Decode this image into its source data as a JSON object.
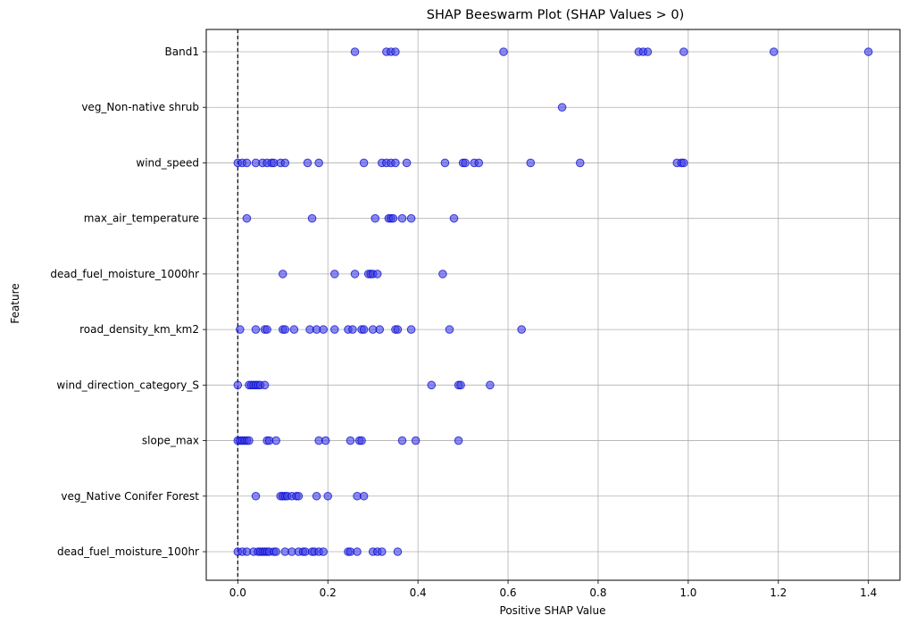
{
  "chart_data": {
    "type": "scatter",
    "title": "SHAP Beeswarm Plot (SHAP Values > 0)",
    "xlabel": "Positive SHAP Value",
    "ylabel": "Feature",
    "xlim": [
      -0.07,
      1.47
    ],
    "xticks": [
      0.0,
      0.2,
      0.4,
      0.6,
      0.8,
      1.0,
      1.2,
      1.4
    ],
    "xtick_labels": [
      "0.0",
      "0.2",
      "0.4",
      "0.6",
      "0.8",
      "1.0",
      "1.2",
      "1.4"
    ],
    "grid": true,
    "reference_line": {
      "x": 0,
      "style": "dashed",
      "color": "#000000"
    },
    "point_color": "#4040e6",
    "point_edge_color": "#0000cc",
    "features": [
      {
        "name": "Band1",
        "values": [
          0.26,
          0.33,
          0.34,
          0.35,
          0.59,
          0.89,
          0.9,
          0.91,
          0.99,
          1.19,
          1.4
        ]
      },
      {
        "name": "veg_Non-native shrub ",
        "values": [
          0.72
        ]
      },
      {
        "name": "wind_speed",
        "values": [
          0.0,
          0.01,
          0.02,
          0.04,
          0.055,
          0.065,
          0.075,
          0.08,
          0.095,
          0.105,
          0.155,
          0.18,
          0.28,
          0.32,
          0.33,
          0.34,
          0.35,
          0.375,
          0.46,
          0.5,
          0.505,
          0.525,
          0.535,
          0.65,
          0.76,
          0.975,
          0.985,
          0.99
        ]
      },
      {
        "name": "max_air_temperature",
        "values": [
          0.02,
          0.165,
          0.305,
          0.335,
          0.34,
          0.345,
          0.365,
          0.385,
          0.48
        ]
      },
      {
        "name": "dead_fuel_moisture_1000hr",
        "values": [
          0.1,
          0.215,
          0.26,
          0.29,
          0.295,
          0.3,
          0.31,
          0.455
        ]
      },
      {
        "name": "road_density_km_km2",
        "values": [
          0.005,
          0.04,
          0.06,
          0.065,
          0.1,
          0.105,
          0.125,
          0.16,
          0.175,
          0.19,
          0.215,
          0.245,
          0.255,
          0.275,
          0.28,
          0.3,
          0.315,
          0.35,
          0.355,
          0.385,
          0.47,
          0.63
        ]
      },
      {
        "name": "wind_direction_category_S",
        "values": [
          0.0,
          0.025,
          0.03,
          0.035,
          0.04,
          0.045,
          0.05,
          0.06,
          0.43,
          0.49,
          0.495,
          0.56
        ]
      },
      {
        "name": "slope_max",
        "values": [
          0.0,
          0.005,
          0.01,
          0.015,
          0.02,
          0.025,
          0.065,
          0.07,
          0.085,
          0.18,
          0.195,
          0.25,
          0.27,
          0.275,
          0.365,
          0.395,
          0.49
        ]
      },
      {
        "name": "veg_Native Conifer Forest ",
        "values": [
          0.04,
          0.095,
          0.1,
          0.105,
          0.11,
          0.12,
          0.13,
          0.135,
          0.175,
          0.2,
          0.265,
          0.28
        ]
      },
      {
        "name": "dead_fuel_moisture_100hr",
        "values": [
          0.0,
          0.01,
          0.02,
          0.035,
          0.045,
          0.05,
          0.055,
          0.06,
          0.065,
          0.07,
          0.08,
          0.085,
          0.105,
          0.12,
          0.135,
          0.145,
          0.15,
          0.165,
          0.17,
          0.18,
          0.19,
          0.245,
          0.25,
          0.265,
          0.3,
          0.31,
          0.32,
          0.355
        ]
      }
    ]
  }
}
